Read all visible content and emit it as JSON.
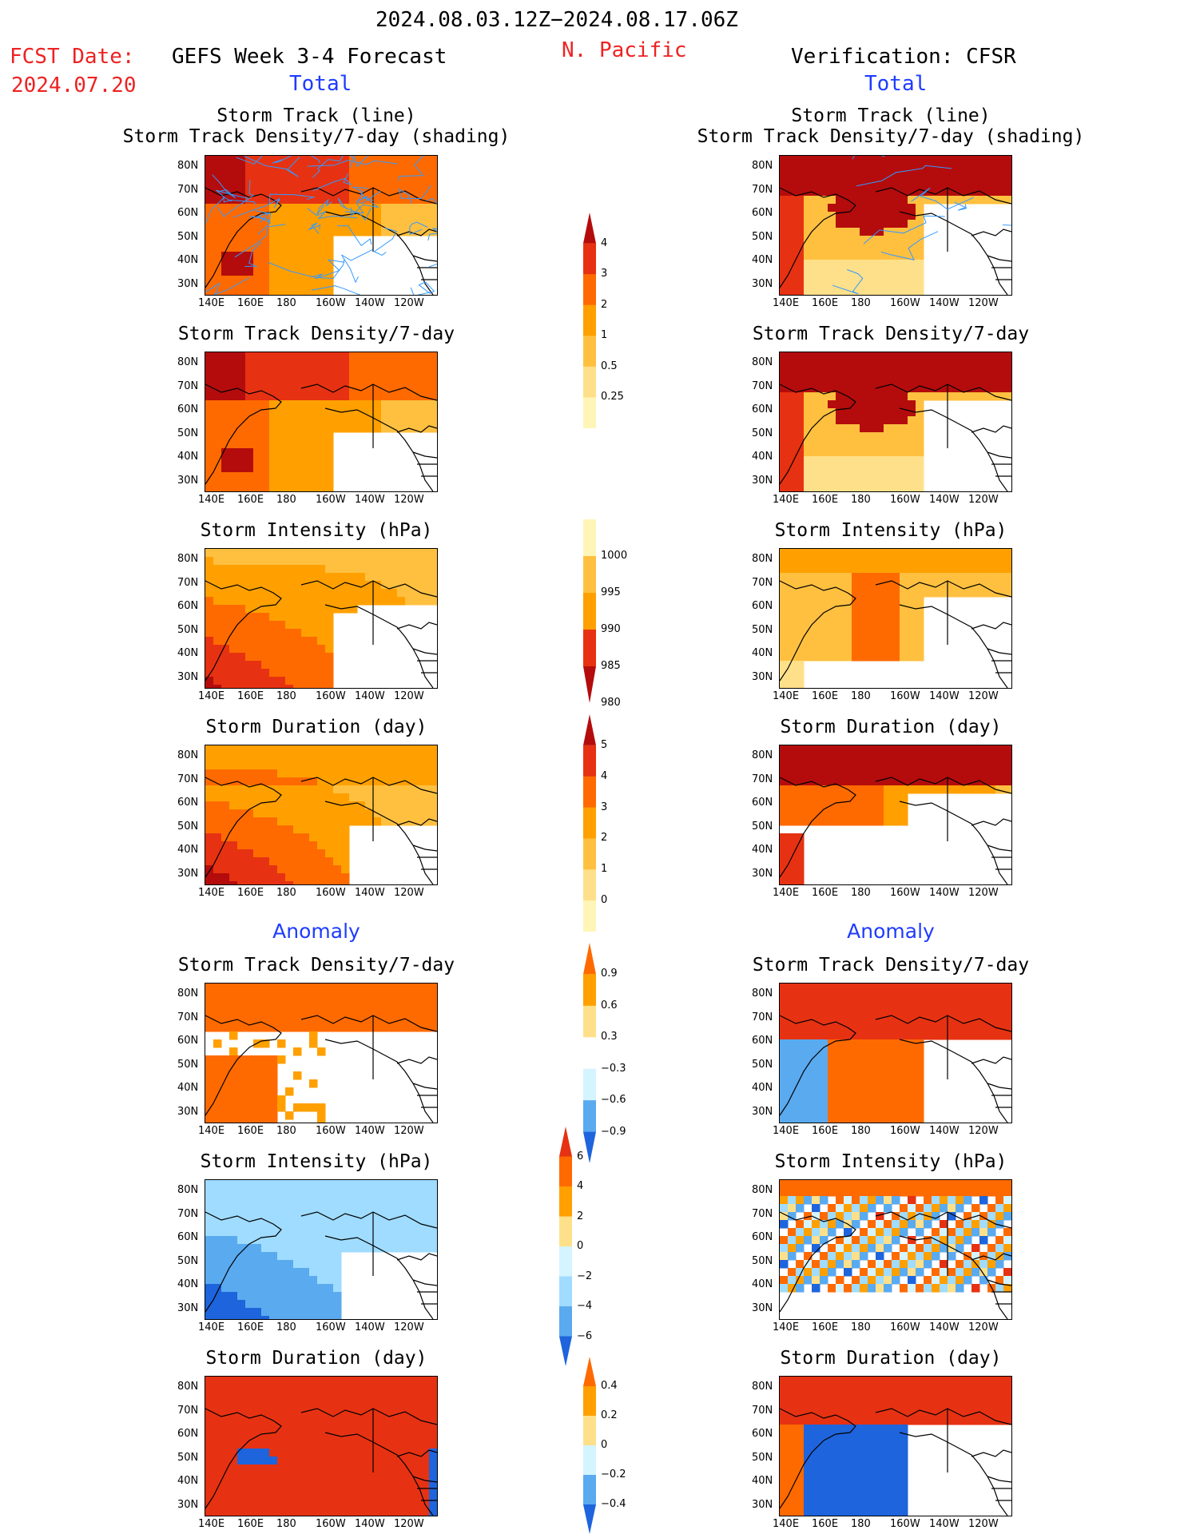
{
  "header": {
    "period": "2024.08.03.12Z−2024.08.17.06Z",
    "region": "N. Pacific",
    "fcst_label": "FCST Date:",
    "fcst_date": "2024.07.20",
    "left_title": "GEFS Week 3-4 Forecast",
    "right_title": "Verification: CFSR",
    "left_subtitle": "Total",
    "right_subtitle": "Total",
    "anomaly_left": "Anomaly",
    "anomaly_right": "Anomaly"
  },
  "panel_titles": {
    "track_line": "Storm Track (line)",
    "track_shading": "Storm Track Density/7-day (shading)",
    "density": "Storm Track Density/7-day",
    "intensity": "Storm Intensity (hPa)",
    "duration": "Storm Duration (day)"
  },
  "axis": {
    "lat_ticks": [
      "80N",
      "70N",
      "60N",
      "50N",
      "40N",
      "30N"
    ],
    "lon_ticks": [
      "140E",
      "160E",
      "180",
      "160W",
      "140W",
      "120W"
    ]
  },
  "colors": {
    "c1": "#fff5b8",
    "c2": "#ffe08a",
    "c3": "#ffc040",
    "c4": "#ffa000",
    "c5": "#ff6a00",
    "c6": "#e63212",
    "c7": "#b40c0c",
    "b1": "#d4f4ff",
    "b2": "#9fdcff",
    "b3": "#5aaaf0",
    "b4": "#1e64dc",
    "track": "#3399ff"
  },
  "chart_data": [
    {
      "type": "heatmap",
      "name": "colorbar_density",
      "ticks": [
        "4",
        "3",
        "2",
        "1",
        "0.5",
        "0.25"
      ],
      "values": [
        4,
        3,
        2,
        1,
        0.5,
        0.25
      ]
    },
    {
      "type": "heatmap",
      "name": "colorbar_intensity",
      "ticks": [
        "1000",
        "995",
        "990",
        "985",
        "980"
      ],
      "values": [
        1000,
        995,
        990,
        985,
        980
      ]
    },
    {
      "type": "heatmap",
      "name": "colorbar_duration",
      "ticks": [
        "5",
        "4",
        "3",
        "2",
        "1",
        "0"
      ],
      "values": [
        5,
        4,
        3,
        2,
        1,
        0
      ]
    },
    {
      "type": "heatmap",
      "name": "colorbar_density_anomaly",
      "ticks": [
        "0.9",
        "0.6",
        "0.3",
        "−0.3",
        "−0.6",
        "−0.9"
      ],
      "values": [
        0.9,
        0.6,
        0.3,
        -0.3,
        -0.6,
        -0.9
      ]
    },
    {
      "type": "heatmap",
      "name": "colorbar_intensity_anomaly",
      "ticks": [
        "6",
        "4",
        "2",
        "0",
        "−2",
        "−4",
        "−6"
      ],
      "values": [
        6,
        4,
        2,
        0,
        -2,
        -4,
        -6
      ]
    },
    {
      "type": "heatmap",
      "name": "colorbar_duration_anomaly",
      "ticks": [
        "0.4",
        "0.2",
        "0",
        "−0.2",
        "−0.4"
      ],
      "values": [
        0.4,
        0.2,
        0,
        -0.2,
        -0.4
      ]
    }
  ]
}
